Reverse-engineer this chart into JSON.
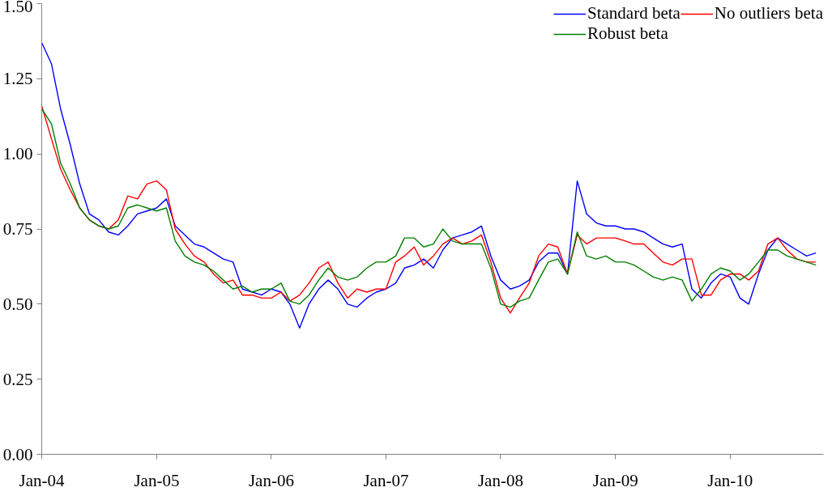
{
  "chart_data": {
    "type": "line",
    "x": [
      "2004-01",
      "2004-02",
      "2004-03",
      "2004-04",
      "2004-05",
      "2004-06",
      "2004-07",
      "2004-08",
      "2004-09",
      "2004-10",
      "2004-11",
      "2004-12",
      "2005-01",
      "2005-02",
      "2005-03",
      "2005-04",
      "2005-05",
      "2005-06",
      "2005-07",
      "2005-08",
      "2005-09",
      "2005-10",
      "2005-11",
      "2005-12",
      "2006-01",
      "2006-02",
      "2006-03",
      "2006-04",
      "2006-05",
      "2006-06",
      "2006-07",
      "2006-08",
      "2006-09",
      "2006-10",
      "2006-11",
      "2006-12",
      "2007-01",
      "2007-02",
      "2007-03",
      "2007-04",
      "2007-05",
      "2007-06",
      "2007-07",
      "2007-08",
      "2007-09",
      "2007-10",
      "2007-11",
      "2007-12",
      "2008-01",
      "2008-02",
      "2008-03",
      "2008-04",
      "2008-05",
      "2008-06",
      "2008-07",
      "2008-08",
      "2008-09",
      "2008-10",
      "2008-11",
      "2008-12",
      "2009-01",
      "2009-02",
      "2009-03",
      "2009-04",
      "2009-05",
      "2009-06",
      "2009-07",
      "2009-08",
      "2009-09",
      "2009-10",
      "2009-11",
      "2009-12",
      "2010-01",
      "2010-02",
      "2010-03",
      "2010-04",
      "2010-05",
      "2010-06",
      "2010-07",
      "2010-08",
      "2010-09",
      "2010-10"
    ],
    "series": [
      {
        "name": "Standard beta",
        "color": "#0000ff",
        "values": [
          1.37,
          1.3,
          1.15,
          1.03,
          0.9,
          0.8,
          0.78,
          0.74,
          0.73,
          0.76,
          0.8,
          0.81,
          0.82,
          0.85,
          0.76,
          0.73,
          0.7,
          0.69,
          0.67,
          0.65,
          0.64,
          0.55,
          0.54,
          0.53,
          0.55,
          0.54,
          0.5,
          0.42,
          0.5,
          0.55,
          0.58,
          0.55,
          0.5,
          0.49,
          0.52,
          0.54,
          0.55,
          0.57,
          0.62,
          0.63,
          0.65,
          0.62,
          0.68,
          0.72,
          0.73,
          0.74,
          0.76,
          0.66,
          0.58,
          0.55,
          0.56,
          0.58,
          0.64,
          0.67,
          0.67,
          0.6,
          0.91,
          0.8,
          0.77,
          0.76,
          0.76,
          0.75,
          0.75,
          0.74,
          0.72,
          0.7,
          0.69,
          0.7,
          0.55,
          0.52,
          0.57,
          0.6,
          0.59,
          0.52,
          0.5,
          0.6,
          0.68,
          0.72,
          0.7,
          0.68,
          0.66,
          0.67
        ]
      },
      {
        "name": "No outliers beta",
        "color": "#ff0000",
        "values": [
          1.16,
          1.05,
          0.95,
          0.88,
          0.82,
          0.78,
          0.76,
          0.75,
          0.78,
          0.86,
          0.85,
          0.9,
          0.91,
          0.88,
          0.75,
          0.7,
          0.66,
          0.64,
          0.6,
          0.57,
          0.58,
          0.53,
          0.53,
          0.52,
          0.52,
          0.54,
          0.51,
          0.53,
          0.57,
          0.62,
          0.64,
          0.57,
          0.52,
          0.55,
          0.54,
          0.55,
          0.55,
          0.64,
          0.66,
          0.69,
          0.63,
          0.66,
          0.7,
          0.72,
          0.7,
          0.71,
          0.73,
          0.64,
          0.52,
          0.47,
          0.52,
          0.57,
          0.66,
          0.7,
          0.69,
          0.6,
          0.73,
          0.7,
          0.72,
          0.72,
          0.72,
          0.71,
          0.7,
          0.7,
          0.67,
          0.64,
          0.63,
          0.65,
          0.65,
          0.53,
          0.53,
          0.58,
          0.6,
          0.6,
          0.58,
          0.61,
          0.7,
          0.72,
          0.68,
          0.65,
          0.64,
          0.64
        ]
      },
      {
        "name": "Robust beta",
        "color": "#008000",
        "values": [
          1.15,
          1.1,
          0.97,
          0.9,
          0.82,
          0.78,
          0.76,
          0.75,
          0.76,
          0.82,
          0.83,
          0.82,
          0.81,
          0.82,
          0.71,
          0.66,
          0.64,
          0.63,
          0.61,
          0.58,
          0.55,
          0.56,
          0.54,
          0.55,
          0.55,
          0.57,
          0.51,
          0.5,
          0.53,
          0.58,
          0.62,
          0.59,
          0.58,
          0.59,
          0.62,
          0.64,
          0.64,
          0.66,
          0.72,
          0.72,
          0.69,
          0.7,
          0.75,
          0.71,
          0.7,
          0.7,
          0.7,
          0.62,
          0.5,
          0.49,
          0.51,
          0.52,
          0.58,
          0.64,
          0.65,
          0.6,
          0.74,
          0.66,
          0.65,
          0.66,
          0.64,
          0.64,
          0.63,
          0.61,
          0.59,
          0.58,
          0.59,
          0.58,
          0.51,
          0.55,
          0.6,
          0.62,
          0.61,
          0.58,
          0.6,
          0.64,
          0.68,
          0.68,
          0.66,
          0.65,
          0.64,
          0.63
        ]
      }
    ],
    "xlim": [
      "2004-01-01",
      "2010-10-25"
    ],
    "xticks": [
      {
        "value": "2004-01-01",
        "label": "Jan-04"
      },
      {
        "value": "2005-01-01",
        "label": "Jan-05"
      },
      {
        "value": "2006-01-01",
        "label": "Jan-06"
      },
      {
        "value": "2007-01-01",
        "label": "Jan-07"
      },
      {
        "value": "2008-01-01",
        "label": "Jan-08"
      },
      {
        "value": "2009-01-01",
        "label": "Jan-09"
      },
      {
        "value": "2010-01-01",
        "label": "Jan-10"
      }
    ],
    "ylim": [
      0,
      1.5
    ],
    "yticks": [
      {
        "value": 0,
        "label": "0.00"
      },
      {
        "value": 0.25,
        "label": "0.25"
      },
      {
        "value": 0.5,
        "label": "0.50"
      },
      {
        "value": 0.75,
        "label": "0.75"
      },
      {
        "value": 1.0,
        "label": "1.00"
      },
      {
        "value": 1.25,
        "label": "1.25"
      },
      {
        "value": 1.5,
        "label": "1.50"
      }
    ],
    "legend": "top right",
    "grid": false,
    "marker": "none",
    "line_style": "solid"
  }
}
